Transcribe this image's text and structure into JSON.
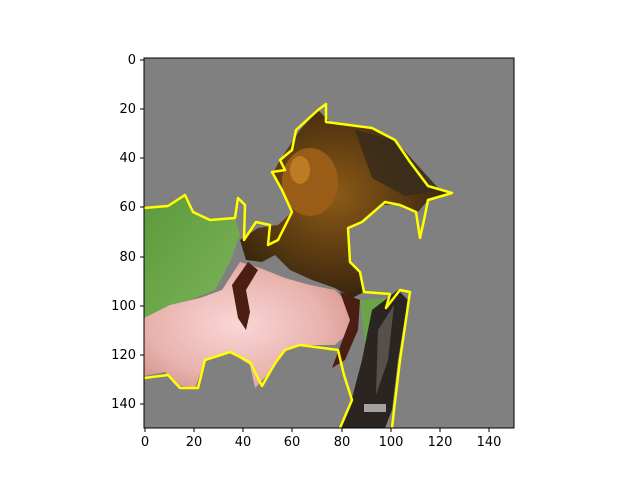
{
  "figure": {
    "type": "image",
    "x_ticks": [
      "0",
      "20",
      "40",
      "60",
      "80",
      "100",
      "120",
      "140"
    ],
    "y_ticks": [
      "0",
      "20",
      "40",
      "60",
      "80",
      "100",
      "120",
      "140"
    ],
    "xlim": [
      0,
      150
    ],
    "ylim": [
      150,
      0
    ],
    "background_color": "#808080",
    "contour_color": "#ffff00",
    "subject": "insect on fingertip with green leaf background",
    "masked_region": "gray"
  }
}
